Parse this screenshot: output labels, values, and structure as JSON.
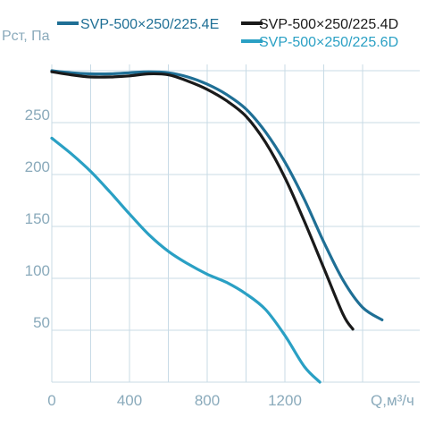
{
  "chart_data": {
    "type": "line",
    "ylabel": "Pст, Па",
    "xlabel": "Q,м³/ч",
    "xlim": [
      0,
      1650
    ],
    "ylim": [
      0,
      300
    ],
    "x_ticks": [
      0,
      400,
      800,
      1200
    ],
    "y_ticks": [
      50,
      100,
      150,
      200,
      250
    ],
    "grid": true,
    "legend_position": "top",
    "series": [
      {
        "name": "SVP-500×250/225.4E",
        "color": "#1f6f95",
        "x": [
          0,
          100,
          200,
          300,
          400,
          500,
          600,
          700,
          800,
          900,
          1000,
          1100,
          1200,
          1300,
          1400,
          1500,
          1600,
          1700
        ],
        "y": [
          300,
          298,
          297,
          297,
          298,
          299,
          298,
          294,
          287,
          277,
          263,
          241,
          212,
          176,
          135,
          98,
          72,
          60
        ]
      },
      {
        "name": "SVP-500×250/225.4D",
        "color": "#1a1a1a",
        "x": [
          0,
          100,
          200,
          300,
          400,
          500,
          600,
          700,
          800,
          900,
          1000,
          1100,
          1200,
          1300,
          1400,
          1500,
          1550
        ],
        "y": [
          299,
          296,
          294,
          294,
          295,
          297,
          296,
          290,
          282,
          271,
          256,
          231,
          197,
          155,
          110,
          65,
          51
        ]
      },
      {
        "name": "SVP-500×250/225.6D",
        "color": "#2aa0c4",
        "x": [
          0,
          100,
          200,
          300,
          400,
          500,
          600,
          700,
          800,
          900,
          1000,
          1100,
          1200,
          1300,
          1380
        ],
        "y": [
          235,
          220,
          203,
          183,
          162,
          142,
          126,
          114,
          104,
          96,
          85,
          70,
          45,
          15,
          0
        ]
      }
    ]
  }
}
